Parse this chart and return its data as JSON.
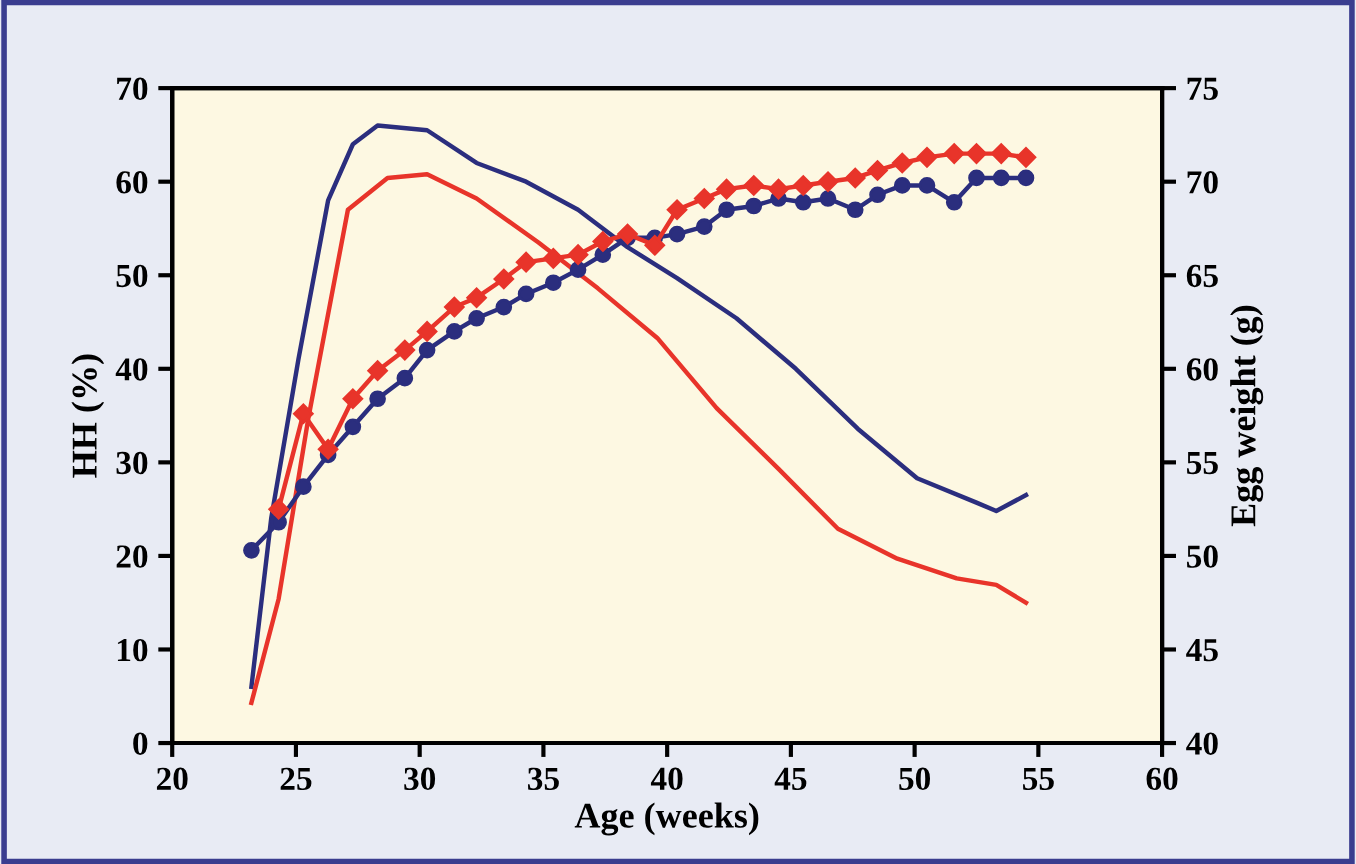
{
  "chart_data": {
    "type": "line",
    "xlabel": "Age (weeks)",
    "ylabel": "HH (%)",
    "y2label": "Egg weight (g)",
    "xlim": [
      20,
      60
    ],
    "xticks": [
      20,
      25,
      30,
      35,
      40,
      45,
      50,
      55,
      60
    ],
    "ylim": [
      0,
      70
    ],
    "yticks": [
      0,
      10,
      20,
      30,
      40,
      50,
      60,
      70
    ],
    "y2lim": [
      40,
      75
    ],
    "y2ticks": [
      40,
      45,
      50,
      55,
      60,
      65,
      70,
      75
    ],
    "grid": false,
    "series": [
      {
        "color": "#2b2e7e",
        "marker": "none",
        "x": [
          23.2,
          24,
          25.1,
          26.3,
          27.3,
          28.3,
          30.3,
          32.3,
          34.3,
          36.4,
          38.4,
          40.4,
          42.8,
          45.2,
          47.7,
          50.1,
          52.5,
          53.3,
          54.5
        ],
        "values": [
          6,
          24,
          41,
          58,
          64,
          66,
          65.5,
          62,
          60,
          57,
          53,
          49.7,
          45.4,
          40,
          33.6,
          28.3,
          25.7,
          24.8,
          26.5
        ]
      },
      {
        "color": "#e8342a",
        "marker": "none",
        "x": [
          23.2,
          24.3,
          25.5,
          27.1,
          28.7,
          30.3,
          32.3,
          34.8,
          37.2,
          39.6,
          42,
          44.5,
          46.9,
          49.3,
          51.7,
          53.3,
          54.5
        ],
        "values": [
          4.3,
          15.4,
          34.7,
          57,
          60.4,
          60.8,
          58.2,
          53.5,
          48.6,
          43.3,
          35.8,
          29.3,
          22.9,
          19.7,
          17.6,
          16.9,
          15
        ]
      },
      {
        "color": "#2b2e7e",
        "marker": "circle",
        "axis": "y2",
        "x": [
          23.2,
          24.3,
          25.3,
          26.3,
          27.3,
          28.3,
          29.4,
          30.3,
          31.4,
          32.3,
          33.4,
          34.3,
          35.4,
          36.4,
          37.4,
          38.4,
          39.5,
          40.4,
          41.5,
          42.4,
          43.5,
          44.5,
          45.5,
          46.5,
          47.6,
          48.5,
          49.5,
          50.5,
          51.6,
          52.5,
          53.5,
          54.5
        ],
        "values": [
          50.3,
          51.8,
          53.7,
          55.4,
          56.9,
          58.4,
          59.5,
          61,
          62,
          62.7,
          63.3,
          64,
          64.6,
          65.3,
          66.1,
          67,
          67,
          67.2,
          67.6,
          68.5,
          68.7,
          69.1,
          68.9,
          69.1,
          68.5,
          69.3,
          69.8,
          69.8,
          68.9,
          70.2,
          70.2,
          70.2
        ]
      },
      {
        "color": "#e8342a",
        "marker": "diamond",
        "axis": "y2",
        "x": [
          24.3,
          25.3,
          26.3,
          27.3,
          28.3,
          29.4,
          30.3,
          31.4,
          32.3,
          33.4,
          34.3,
          35.4,
          36.4,
          37.4,
          38.4,
          39.5,
          40.4,
          41.5,
          42.4,
          43.5,
          44.5,
          45.5,
          46.5,
          47.6,
          48.5,
          49.5,
          50.5,
          51.6,
          52.5,
          53.5,
          54.5
        ],
        "values": [
          52.5,
          57.6,
          55.7,
          58.4,
          59.9,
          61,
          62,
          63.3,
          63.8,
          64.8,
          65.7,
          65.9,
          66.1,
          66.8,
          67.2,
          66.6,
          68.5,
          69.1,
          69.6,
          69.8,
          69.6,
          69.8,
          70,
          70.2,
          70.6,
          71,
          71.3,
          71.5,
          71.5,
          71.5,
          71.3
        ]
      }
    ]
  }
}
